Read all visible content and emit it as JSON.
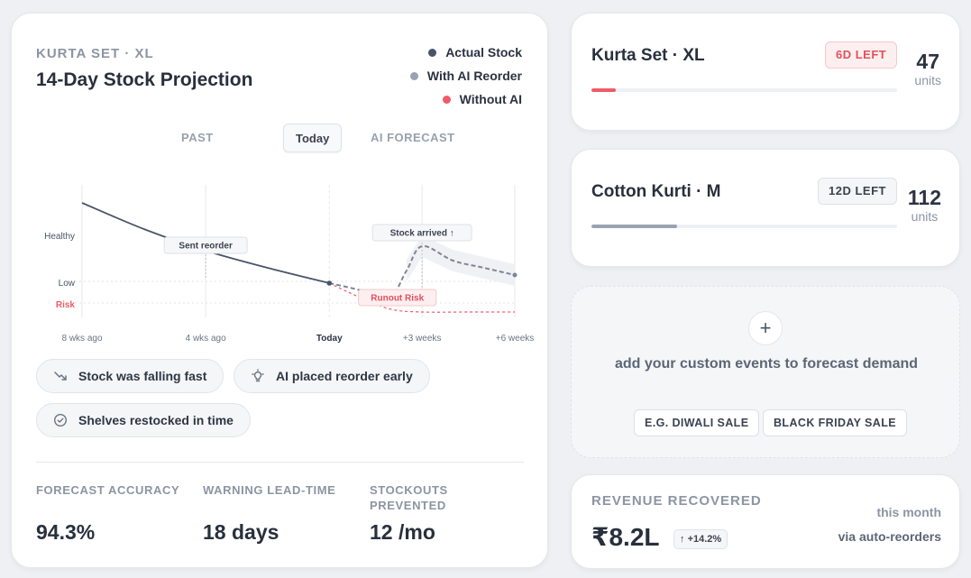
{
  "projection": {
    "eyebrow": "KURTA SET · XL",
    "title": "14-Day Stock Projection",
    "legend": [
      {
        "label": "Actual Stock",
        "color": "#4a5468"
      },
      {
        "label": "With AI Reorder",
        "color": "#9aa3b2"
      },
      {
        "label": "Without AI",
        "color": "#ef5b66"
      }
    ],
    "phases": {
      "past": "PAST",
      "today": "Today",
      "forecast": "AI FORECAST"
    },
    "chips": [
      {
        "icon": "trend-down-icon",
        "label": "Stock was falling fast"
      },
      {
        "icon": "lightbulb-icon",
        "label": "AI placed reorder early"
      },
      {
        "icon": "check-circle-icon",
        "label": "Shelves restocked in time"
      }
    ],
    "stats": [
      {
        "label": "FORECAST ACCURACY",
        "value": "94.3%"
      },
      {
        "label": "WARNING LEAD-TIME",
        "value": "18 days"
      },
      {
        "label": "STOCKOUTS PREVENTED",
        "value": "12 /mo"
      }
    ]
  },
  "chart_data": {
    "type": "line",
    "x_ticks": [
      "8 wks ago",
      "4 wks ago",
      "Today",
      "+3 weeks",
      "+6 weeks"
    ],
    "x_range_weeks": [
      -8,
      6
    ],
    "y_levels": [
      {
        "label": "Healthy",
        "color": "#4a5468"
      },
      {
        "label": "Low",
        "color": "#4a5468"
      },
      {
        "label": "Risk",
        "color": "#ef5b66"
      }
    ],
    "annotations": [
      {
        "label": "Sent reorder",
        "x_weeks": -4,
        "style": "normal"
      },
      {
        "label": "Stock arrived ↑",
        "x_weeks": 3,
        "style": "normal"
      },
      {
        "label": "Runout Risk",
        "x_weeks": 2.2,
        "style": "risk"
      }
    ],
    "series": [
      {
        "name": "Actual Stock",
        "color": "#4a5468",
        "dash": false,
        "points": [
          [
            -8,
            1.25
          ],
          [
            -6,
            0.96
          ],
          [
            -4,
            0.72
          ],
          [
            -2,
            0.53
          ],
          [
            0,
            0.36
          ]
        ]
      },
      {
        "name": "With AI Reorder",
        "color": "#7d8697",
        "dash": true,
        "points": [
          [
            0,
            0.36
          ],
          [
            1.0,
            0.28
          ],
          [
            1.9,
            0.17
          ],
          [
            2.5,
            0.5
          ],
          [
            3.0,
            0.77
          ],
          [
            4.0,
            0.61
          ],
          [
            5.0,
            0.53
          ],
          [
            6.0,
            0.45
          ]
        ]
      },
      {
        "name": "Without AI",
        "color": "#ef5b66",
        "dash": true,
        "points": [
          [
            0,
            0.36
          ],
          [
            1.0,
            0.2
          ],
          [
            2.0,
            0.07
          ],
          [
            3.0,
            0.04
          ],
          [
            4.5,
            0.04
          ],
          [
            6.0,
            0.04
          ]
        ]
      }
    ]
  },
  "products": [
    {
      "name": "Kurta Set · XL",
      "badge": "6D LEFT",
      "badge_style": "red",
      "units": "47",
      "units_label": "units",
      "fill_fraction": 0.08,
      "fill_color": "#ef5b66"
    },
    {
      "name": "Cotton Kurti · M",
      "badge": "12D LEFT",
      "badge_style": "gray",
      "units": "112",
      "units_label": "units",
      "fill_fraction": 0.28,
      "fill_color": "#9aa3b2"
    }
  ],
  "events": {
    "plus": "+",
    "text": "add your custom events to forecast demand",
    "examples": [
      "E.G. DIWALI SALE",
      "BLACK FRIDAY SALE"
    ]
  },
  "revenue": {
    "label": "REVENUE RECOVERED",
    "value": "₹8.2L",
    "delta": "+14.2%",
    "period": "this month",
    "via": "via auto-reorders"
  }
}
